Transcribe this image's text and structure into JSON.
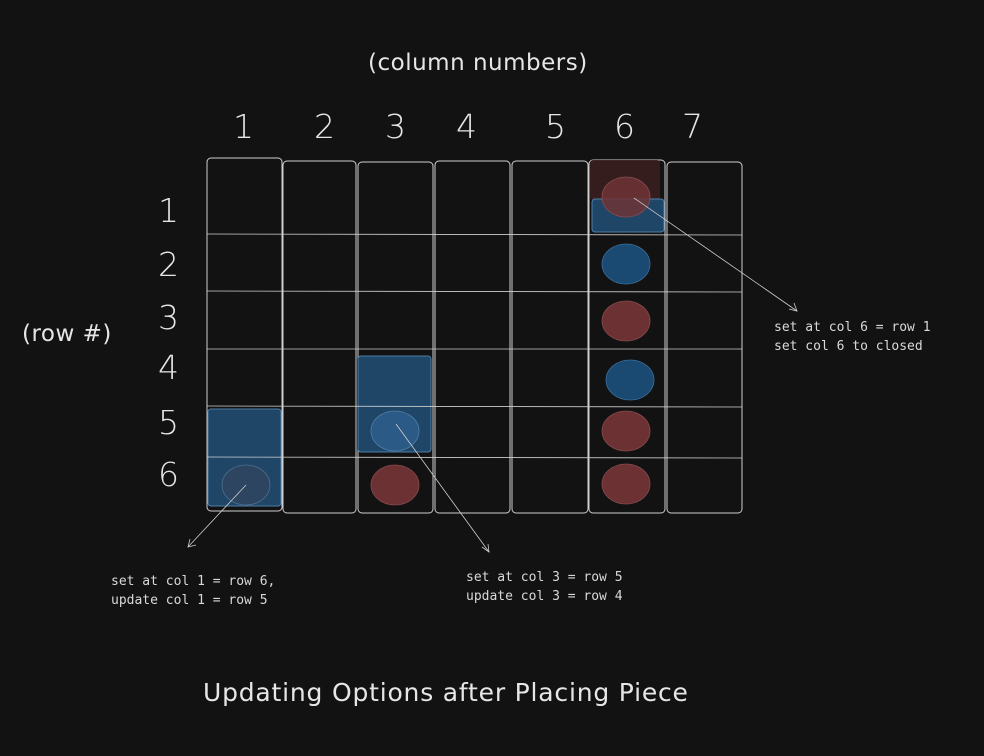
{
  "header": {
    "column_title": "(column numbers)",
    "row_title": "(row #)"
  },
  "board": {
    "columns": [
      "1",
      "2",
      "3",
      "4",
      "5",
      "6",
      "7"
    ],
    "rows": [
      "1",
      "2",
      "3",
      "4",
      "5",
      "6"
    ],
    "pieces": [
      {
        "col": 6,
        "row": 1,
        "color": "red"
      },
      {
        "col": 6,
        "row": 2,
        "color": "blue"
      },
      {
        "col": 6,
        "row": 3,
        "color": "red"
      },
      {
        "col": 6,
        "row": 4,
        "color": "blue"
      },
      {
        "col": 6,
        "row": 5,
        "color": "red"
      },
      {
        "col": 6,
        "row": 6,
        "color": "red"
      },
      {
        "col": 3,
        "row": 6,
        "color": "red"
      },
      {
        "col": 3,
        "row": 5,
        "color": "blue"
      },
      {
        "col": 1,
        "row": 6,
        "color": "blue"
      }
    ]
  },
  "annotations": {
    "col6_line1": "set at col 6 = row 1",
    "col6_line2": "set col 6 to closed",
    "col1_line1": "set at col 1 = row 6,",
    "col1_line2": "update col 1 = row 5",
    "col3_line1": "set at col 3 = row 5",
    "col3_line2": "update col 3 = row 4"
  },
  "caption": "Updating Options after Placing Piece",
  "colors": {
    "background": "#121212",
    "stroke": "#d0d0d0",
    "red_piece": "#6b3133",
    "blue_piece": "#1a4a72",
    "highlight_blue": "#1f4567",
    "highlight_red": "#3a1f1f"
  }
}
